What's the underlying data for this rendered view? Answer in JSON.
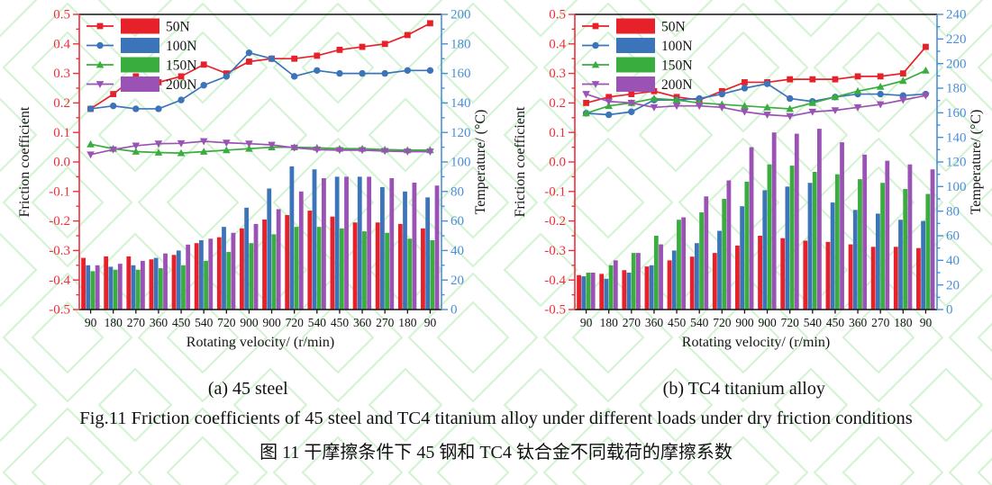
{
  "page": {
    "background": "#ffffff",
    "watermark_color": "#8fe08f"
  },
  "captions": {
    "panel_a": "(a) 45 steel",
    "panel_b": "(b) TC4 titanium alloy",
    "figure_en": "Fig.11 Friction coefficients of 45 steel and TC4 titanium alloy under different loads under dry friction conditions",
    "figure_zh": "图 11  干摩擦条件下 45 钢和 TC4 钛合金不同载荷的摩擦系数"
  },
  "chart_data": [
    {
      "id": "panel-a",
      "type": "combo_line_bar",
      "title": "(a) 45 steel",
      "categories": [
        "90",
        "180",
        "270",
        "360",
        "450",
        "540",
        "720",
        "900",
        "900",
        "720",
        "540",
        "450",
        "360",
        "270",
        "180",
        "90"
      ],
      "xlabel": "Rotating velocity/ (r/min)",
      "grid": false,
      "legend_position": "top-left",
      "y_left": {
        "label": "Friction coefficient",
        "min": -0.5,
        "max": 0.5,
        "major_step": 0.1,
        "color": "#ee2f3a"
      },
      "y_right": {
        "label": "Temperature/ (°C)",
        "min": 0,
        "max": 200,
        "major_step": 20,
        "color": "#4a8fd6"
      },
      "line_series": [
        {
          "name": "50N",
          "color": "#e62129",
          "marker": "square",
          "axis": "left",
          "values": [
            0.18,
            0.23,
            0.29,
            0.27,
            0.29,
            0.33,
            0.3,
            0.34,
            0.35,
            0.35,
            0.36,
            0.38,
            0.39,
            0.4,
            0.43,
            0.47
          ]
        },
        {
          "name": "100N",
          "color": "#3b74b9",
          "marker": "circle",
          "axis": "left",
          "values": [
            0.18,
            0.19,
            0.18,
            0.18,
            0.21,
            0.26,
            0.29,
            0.37,
            0.35,
            0.29,
            0.31,
            0.3,
            0.3,
            0.3,
            0.31,
            0.31
          ]
        },
        {
          "name": "150N",
          "color": "#3aad3f",
          "marker": "triangle-up",
          "axis": "left",
          "values": [
            0.06,
            0.045,
            0.035,
            0.032,
            0.03,
            0.035,
            0.04,
            0.045,
            0.05,
            0.05,
            0.048,
            0.045,
            0.045,
            0.042,
            0.04,
            0.04
          ]
        },
        {
          "name": "200N",
          "color": "#9a52b5",
          "marker": "triangle-down",
          "axis": "left",
          "values": [
            0.025,
            0.042,
            0.055,
            0.062,
            0.063,
            0.07,
            0.065,
            0.062,
            0.058,
            0.048,
            0.042,
            0.04,
            0.04,
            0.037,
            0.035,
            0.035
          ]
        }
      ],
      "bar_series": [
        {
          "name": "50N",
          "color": "#e62129",
          "axis": "right",
          "values": [
            35,
            36,
            36,
            34,
            37,
            45,
            49,
            55,
            61,
            64,
            67,
            63,
            59,
            59,
            58,
            55
          ]
        },
        {
          "name": "100N",
          "color": "#3b74b9",
          "axis": "right",
          "values": [
            30,
            29,
            30,
            35,
            40,
            47,
            56,
            69,
            82,
            97,
            95,
            90,
            90,
            83,
            80,
            76
          ]
        },
        {
          "name": "150N",
          "color": "#3aad3f",
          "axis": "right",
          "values": [
            26,
            27,
            27,
            28,
            30,
            33,
            39,
            45,
            51,
            56,
            56,
            55,
            53,
            52,
            48,
            47
          ]
        },
        {
          "name": "200N",
          "color": "#9a52b5",
          "axis": "right",
          "values": [
            30,
            31,
            33,
            38,
            44,
            48,
            52,
            58,
            68,
            80,
            89,
            90,
            90,
            89,
            86,
            84
          ]
        }
      ]
    },
    {
      "id": "panel-b",
      "type": "combo_line_bar",
      "title": "(b) TC4 titanium alloy",
      "categories": [
        "90",
        "180",
        "270",
        "360",
        "450",
        "540",
        "720",
        "900",
        "900",
        "720",
        "540",
        "450",
        "360",
        "270",
        "180",
        "90"
      ],
      "xlabel": "Rotating velocity/ (r/min)",
      "grid": false,
      "legend_position": "top-left",
      "y_left": {
        "label": "Friction coefficient",
        "min": -0.5,
        "max": 0.5,
        "major_step": 0.1,
        "color": "#ee2f3a"
      },
      "y_right": {
        "label": "Temperature/ (°C)",
        "min": 0,
        "max": 240,
        "major_step": 20,
        "color": "#4a8fd6"
      },
      "line_series": [
        {
          "name": "50N",
          "color": "#e62129",
          "marker": "square",
          "axis": "left",
          "values": [
            0.2,
            0.22,
            0.23,
            0.24,
            0.22,
            0.21,
            0.24,
            0.27,
            0.27,
            0.28,
            0.28,
            0.28,
            0.29,
            0.29,
            0.3,
            0.39
          ]
        },
        {
          "name": "100N",
          "color": "#3b74b9",
          "marker": "circle",
          "axis": "left",
          "values": [
            0.165,
            0.16,
            0.17,
            0.21,
            0.21,
            0.215,
            0.23,
            0.25,
            0.265,
            0.215,
            0.205,
            0.22,
            0.23,
            0.23,
            0.225,
            0.23
          ]
        },
        {
          "name": "150N",
          "color": "#3aad3f",
          "marker": "triangle-up",
          "axis": "left",
          "values": [
            0.165,
            0.19,
            0.2,
            0.215,
            0.21,
            0.2,
            0.195,
            0.19,
            0.185,
            0.18,
            0.2,
            0.22,
            0.24,
            0.255,
            0.275,
            0.31
          ]
        },
        {
          "name": "200N",
          "color": "#9a52b5",
          "marker": "triangle-down",
          "axis": "left",
          "values": [
            0.23,
            0.205,
            0.2,
            0.185,
            0.19,
            0.19,
            0.185,
            0.17,
            0.16,
            0.155,
            0.17,
            0.175,
            0.185,
            0.195,
            0.21,
            0.225
          ]
        }
      ],
      "bar_series": [
        {
          "name": "50N",
          "color": "#e62129",
          "axis": "right",
          "values": [
            28,
            29,
            32,
            35,
            40,
            43,
            46,
            52,
            60,
            58,
            56,
            55,
            53,
            51,
            51,
            50
          ]
        },
        {
          "name": "100N",
          "color": "#3b74b9",
          "axis": "right",
          "values": [
            27,
            25,
            30,
            36,
            48,
            54,
            64,
            84,
            97,
            100,
            103,
            87,
            81,
            78,
            73,
            72
          ]
        },
        {
          "name": "150N",
          "color": "#3aad3f",
          "axis": "right",
          "values": [
            30,
            36,
            46,
            60,
            73,
            79,
            90,
            104,
            118,
            117,
            112,
            110,
            106,
            103,
            98,
            94
          ]
        },
        {
          "name": "200N",
          "color": "#9a52b5",
          "axis": "right",
          "values": [
            30,
            40,
            46,
            53,
            75,
            92,
            105,
            132,
            144,
            143,
            147,
            136,
            126,
            121,
            118,
            114
          ]
        }
      ]
    }
  ]
}
